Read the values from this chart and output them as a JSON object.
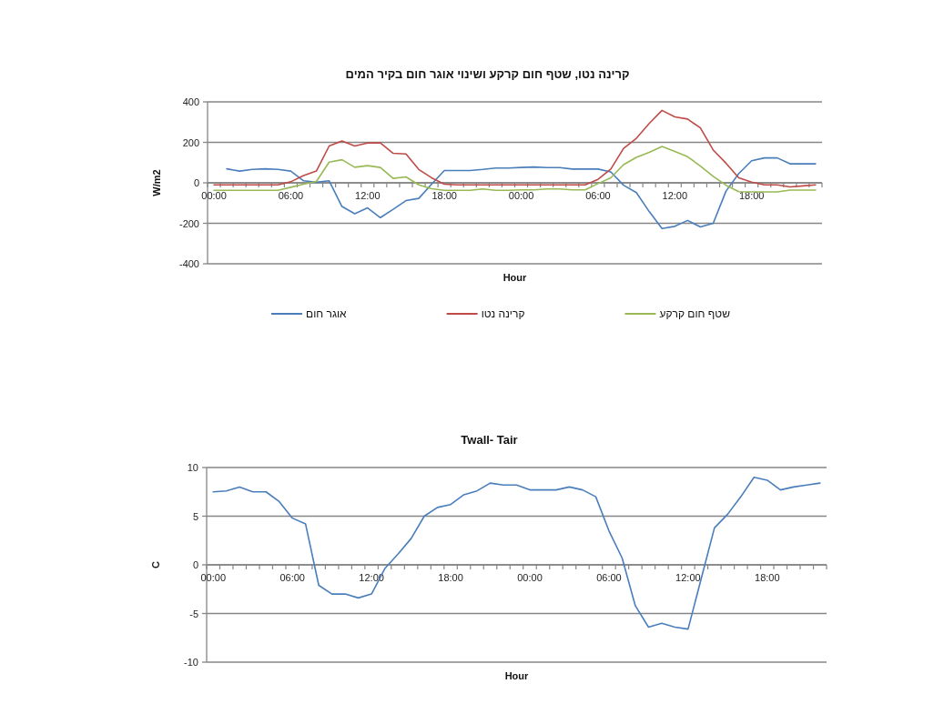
{
  "chart_data": [
    {
      "type": "line",
      "title": "קרינה נטו, שטף חום קרקע ושינוי  אוגר חום בקיר המים",
      "xlabel": "Hour",
      "ylabel": "W/m2",
      "categories": [
        "00:00",
        null,
        null,
        null,
        null,
        null,
        "06:00",
        null,
        null,
        null,
        null,
        null,
        "12:00",
        null,
        null,
        null,
        null,
        null,
        "18:00",
        null,
        null,
        null,
        null,
        null,
        "00:00",
        null,
        null,
        null,
        null,
        null,
        "06:00",
        null,
        null,
        null,
        null,
        null,
        "12:00",
        null,
        null,
        null,
        null,
        null,
        "18:00",
        null,
        null,
        null,
        null,
        null
      ],
      "series": [
        {
          "name": "אוגר חום",
          "color": "#4a7ebb",
          "values": [
            null,
            69,
            58,
            66,
            69,
            66,
            58,
            10,
            3,
            10,
            -117,
            -153,
            -124,
            -172,
            -131,
            -88,
            -77,
            -7,
            61,
            61,
            61,
            66,
            73,
            73,
            76,
            78,
            75,
            75,
            68,
            68,
            68,
            54,
            -12,
            -48,
            -142,
            -226,
            -215,
            -186,
            -218,
            -200,
            -41,
            46,
            109,
            123,
            123,
            94,
            94,
            94
          ]
        },
        {
          "name": "קרינה נטו",
          "color": "#be4b48",
          "values": [
            -10,
            -10,
            -10,
            -10,
            -10,
            -10,
            5,
            36,
            58,
            182,
            207,
            182,
            197,
            197,
            146,
            143,
            66,
            25,
            -7,
            -10,
            -10,
            -10,
            -10,
            -10,
            -10,
            -10,
            -10,
            -10,
            -10,
            -10,
            17,
            68,
            170,
            220,
            293,
            358,
            326,
            315,
            271,
            162,
            97,
            25,
            3,
            -10,
            -10,
            -20,
            -15,
            -10
          ]
        },
        {
          "name": "שטף חום קרקע",
          "color": "#98b954",
          "values": [
            -37,
            -37,
            -37,
            -37,
            -37,
            -37,
            -22,
            -7,
            7,
            102,
            114,
            77,
            85,
            76,
            22,
            29,
            -10,
            -29,
            -37,
            -37,
            -37,
            -30,
            -37,
            -37,
            -35,
            -35,
            -30,
            -30,
            -35,
            -35,
            -4,
            25,
            90,
            126,
            151,
            180,
            155,
            129,
            83,
            32,
            -12,
            -44,
            -45,
            -45,
            -45,
            -36,
            -36,
            -36
          ]
        }
      ],
      "ylim": [
        -400,
        400
      ],
      "yticks": [
        -400,
        -200,
        0,
        200,
        400
      ],
      "grid": "y",
      "legend": "bottom"
    },
    {
      "type": "line",
      "title": "Twall- Tair",
      "xlabel": "Hour",
      "ylabel": "C",
      "categories": [
        "00:00",
        null,
        null,
        null,
        null,
        null,
        "06:00",
        null,
        null,
        null,
        null,
        null,
        "12:00",
        null,
        null,
        null,
        null,
        null,
        "18:00",
        null,
        null,
        null,
        null,
        null,
        "00:00",
        null,
        null,
        null,
        null,
        null,
        "06:00",
        null,
        null,
        null,
        null,
        null,
        "12:00",
        null,
        null,
        null,
        null,
        null,
        "18:00",
        null,
        null,
        null,
        null
      ],
      "values": [
        7.5,
        7.6,
        8.0,
        7.5,
        7.5,
        6.5,
        4.8,
        4.2,
        -2.1,
        -3.0,
        -3.0,
        -3.4,
        -3.0,
        -0.4,
        1.1,
        2.7,
        5.0,
        5.9,
        6.2,
        7.2,
        7.6,
        8.4,
        8.2,
        8.2,
        7.7,
        7.7,
        7.7,
        8.0,
        7.7,
        7.0,
        3.5,
        0.7,
        -4.2,
        -6.4,
        -6.0,
        -6.4,
        -6.6,
        -1.4,
        3.8,
        5.2,
        7.0,
        9.0,
        8.7,
        7.7,
        8.0,
        8.2,
        8.4
      ],
      "color": "#4a7ebb",
      "ylim": [
        -10,
        10
      ],
      "yticks": [
        -10,
        -5,
        0,
        5,
        10
      ],
      "grid": "y"
    }
  ]
}
